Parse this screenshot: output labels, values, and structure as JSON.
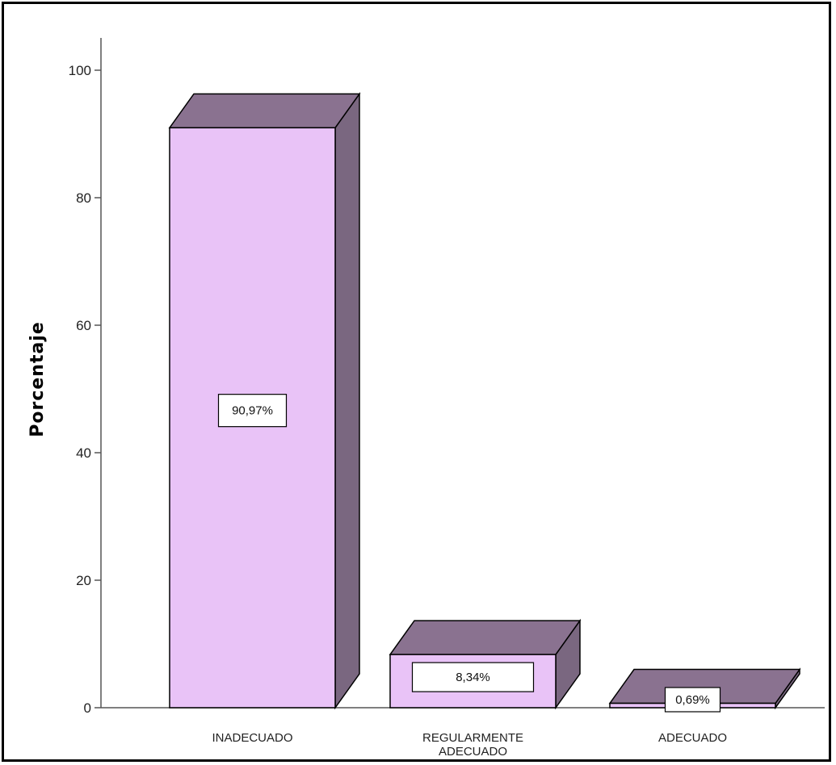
{
  "chart_data": {
    "type": "bar",
    "title": "",
    "xlabel": "",
    "ylabel": "Porcentaje",
    "ylim": [
      0,
      100
    ],
    "yticks": [
      0,
      20,
      40,
      60,
      80,
      100
    ],
    "categories": [
      [
        "INADECUADO"
      ],
      [
        "REGULARMENTE",
        "ADECUADO"
      ],
      [
        "ADECUADO"
      ]
    ],
    "values": [
      90.97,
      8.34,
      0.69
    ],
    "data_labels": [
      "90,97%",
      "8,34%",
      "0,69%"
    ],
    "style": "3d",
    "grid": false,
    "legend": "none",
    "colors": {
      "bar_front": "#e9c3f7",
      "bar_top": "#8a7290",
      "bar_side": "#7a6780",
      "outline": "#000000",
      "axis": "#555555"
    }
  }
}
